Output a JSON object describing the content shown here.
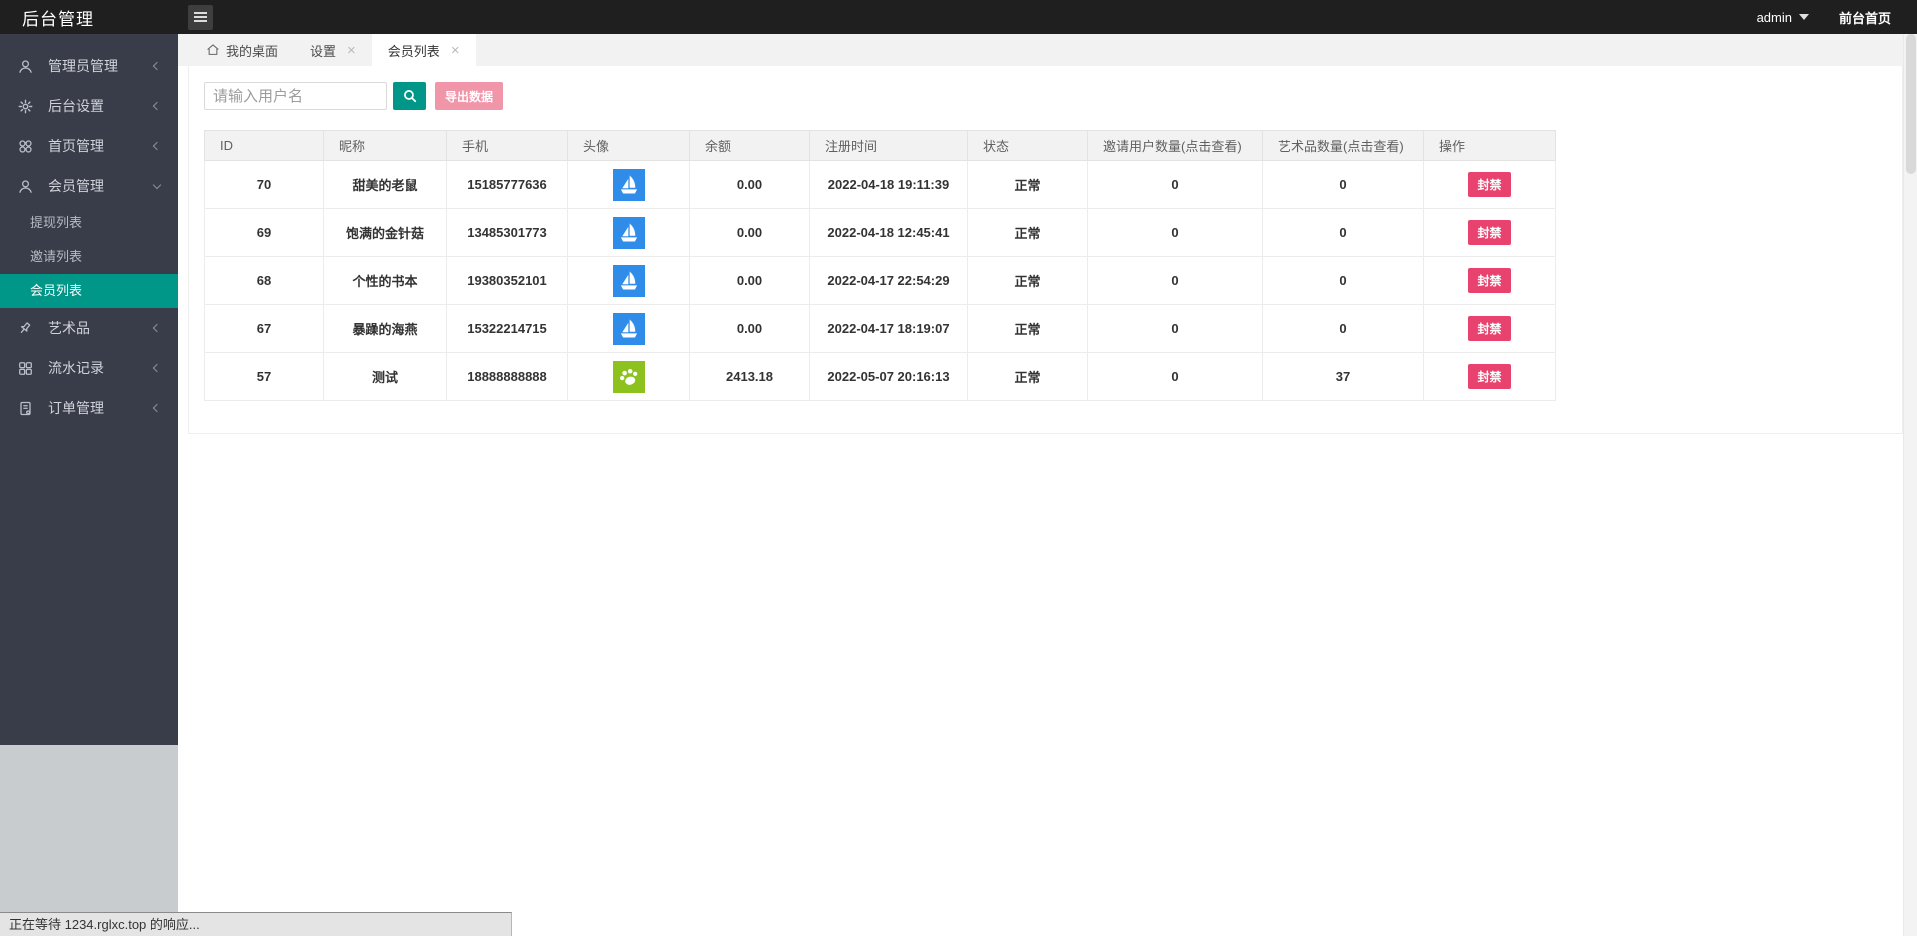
{
  "header": {
    "title": "后台管理",
    "user": "admin",
    "frontend_link": "前台首页"
  },
  "tabs": [
    {
      "label": "我的桌面",
      "icon": "home-icon",
      "closable": false,
      "active": false
    },
    {
      "label": "设置",
      "closable": true,
      "active": false
    },
    {
      "label": "会员列表",
      "closable": true,
      "active": true
    }
  ],
  "sidebar": {
    "items": [
      {
        "label": "管理员管理",
        "icon": "user-icon",
        "state": "collapsed"
      },
      {
        "label": "后台设置",
        "icon": "gear-icon",
        "state": "collapsed"
      },
      {
        "label": "首页管理",
        "icon": "grid-circles-icon",
        "state": "collapsed"
      },
      {
        "label": "会员管理",
        "icon": "member-icon",
        "state": "expanded",
        "children": [
          {
            "label": "提现列表",
            "active": false
          },
          {
            "label": "邀请列表",
            "active": false
          },
          {
            "label": "会员列表",
            "active": true
          }
        ]
      },
      {
        "label": "艺术品",
        "icon": "pin-icon",
        "state": "collapsed"
      },
      {
        "label": "流水记录",
        "icon": "grid-squares-icon",
        "state": "collapsed"
      },
      {
        "label": "订单管理",
        "icon": "document-icon",
        "state": "collapsed"
      }
    ]
  },
  "toolbar": {
    "search_placeholder": "请输入用户名",
    "export_label": "导出数据"
  },
  "table": {
    "columns": [
      "ID",
      "昵称",
      "手机",
      "头像",
      "余额",
      "注册时间",
      "状态",
      "邀请用户数量(点击查看)",
      "艺术品数量(点击查看)",
      "操作"
    ],
    "ban_label": "封禁",
    "rows": [
      {
        "id": "70",
        "nickname": "甜美的老鼠",
        "phone": "15185777636",
        "avatar": "ship",
        "balance": "0.00",
        "reg_time": "2022-04-18 19:11:39",
        "status": "正常",
        "invites": "0",
        "artworks": "0"
      },
      {
        "id": "69",
        "nickname": "饱满的金针菇",
        "phone": "13485301773",
        "avatar": "ship",
        "balance": "0.00",
        "reg_time": "2022-04-18 12:45:41",
        "status": "正常",
        "invites": "0",
        "artworks": "0"
      },
      {
        "id": "68",
        "nickname": "个性的书本",
        "phone": "19380352101",
        "avatar": "ship",
        "balance": "0.00",
        "reg_time": "2022-04-17 22:54:29",
        "status": "正常",
        "invites": "0",
        "artworks": "0"
      },
      {
        "id": "67",
        "nickname": "暴躁的海燕",
        "phone": "15322214715",
        "avatar": "ship",
        "balance": "0.00",
        "reg_time": "2022-04-17 18:19:07",
        "status": "正常",
        "invites": "0",
        "artworks": "0"
      },
      {
        "id": "57",
        "nickname": "测试",
        "phone": "18888888888",
        "avatar": "paw",
        "balance": "2413.18",
        "reg_time": "2022-05-07 20:16:13",
        "status": "正常",
        "invites": "0",
        "artworks": "37"
      }
    ]
  },
  "status_bar": {
    "text": "正在等待 1234.rglxc.top 的响应..."
  },
  "colors": {
    "header_bg": "#1f1f1f",
    "sidebar_bg": "#393D49",
    "active_menu": "#009688",
    "search_button": "#009688",
    "export_button": "#f195a9",
    "ban_button": "#e8436f",
    "status_normal": "#0eb3a6",
    "count_link": "#1628d6",
    "ship_avatar_bg": "#2f8de9",
    "paw_avatar_bg": "#8cc11e"
  }
}
